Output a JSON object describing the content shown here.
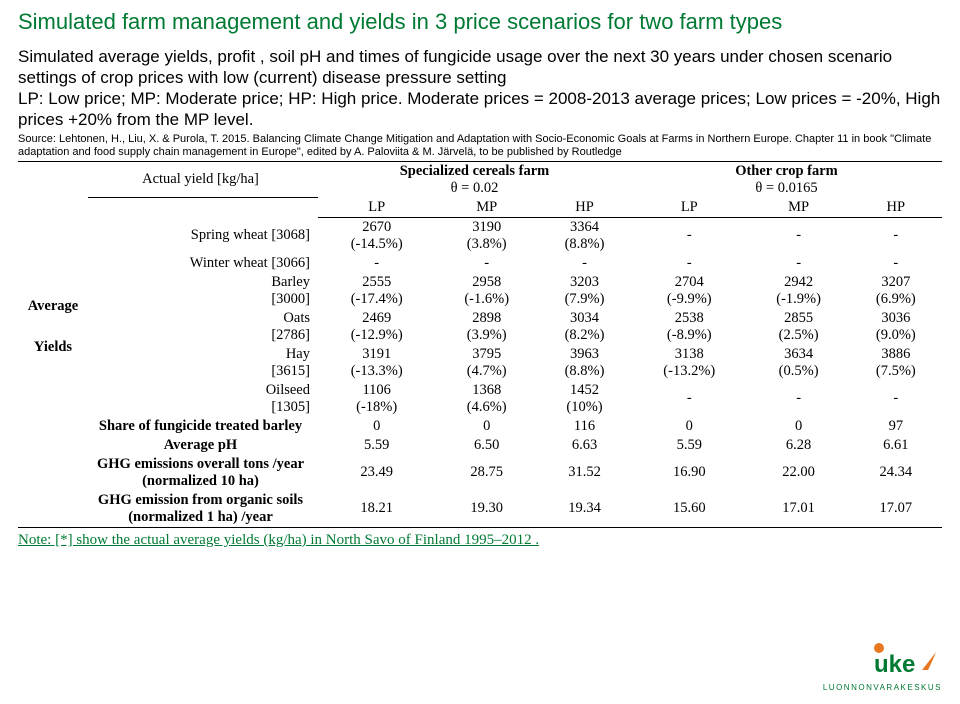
{
  "title": "Simulated farm management and yields in 3 price scenarios for two farm types",
  "intro": "Simulated average yields, profit , soil pH and times of fungicide usage over the next  30 years under chosen scenario settings of crop prices with low (current) disease pressure setting\nLP: Low price; MP: Moderate price; HP: High price. Moderate prices = 2008-2013 average prices; Low prices = -20%, High prices +20% from the MP level.",
  "source": "Source: Lehtonen, H., Liu, X. & Purola, T. 2015. Balancing Climate Change Mitigation and Adaptation with Socio-Economic Goals at Farms in Northern Europe. Chapter 11 in book \"Climate adaptation and food supply chain management in Europe\", edited by A. Paloviita & M. Järvelä, to be published by Routledge",
  "header": {
    "actual": "Actual yield [kg/ha]",
    "farm1": "Specialized cereals farm",
    "farm1_theta": "θ = 0.02",
    "farm2": "Other crop farm",
    "farm2_theta": "θ = 0.0165",
    "lp": "LP",
    "mp": "MP",
    "hp": "HP"
  },
  "side_label": "Average Yields",
  "crops": [
    {
      "label": "Spring wheat [3068]",
      "f1": [
        {
          "m": "2670",
          "p": "(-14.5%)"
        },
        {
          "m": "3190",
          "p": "(3.8%)"
        },
        {
          "m": "3364",
          "p": "(8.8%)"
        }
      ],
      "f2": [
        {
          "m": "-",
          "p": ""
        },
        {
          "m": "-",
          "p": ""
        },
        {
          "m": "-",
          "p": ""
        }
      ]
    },
    {
      "label": "Winter wheat [3066]",
      "f1": [
        {
          "m": "-",
          "p": ""
        },
        {
          "m": "-",
          "p": ""
        },
        {
          "m": "-",
          "p": ""
        }
      ],
      "f2": [
        {
          "m": "-",
          "p": ""
        },
        {
          "m": "-",
          "p": ""
        },
        {
          "m": "-",
          "p": ""
        }
      ]
    },
    {
      "label": "Barley",
      "label2": "[3000]",
      "f1": [
        {
          "m": "2555",
          "p": "(-17.4%)"
        },
        {
          "m": "2958",
          "p": "(-1.6%)"
        },
        {
          "m": "3203",
          "p": "(7.9%)"
        }
      ],
      "f2": [
        {
          "m": "2704",
          "p": "(-9.9%)"
        },
        {
          "m": "2942",
          "p": "(-1.9%)"
        },
        {
          "m": "3207",
          "p": "(6.9%)"
        }
      ]
    },
    {
      "label": "Oats",
      "label2": "[2786]",
      "f1": [
        {
          "m": "2469",
          "p": "(-12.9%)"
        },
        {
          "m": "2898",
          "p": "(3.9%)"
        },
        {
          "m": "3034",
          "p": "(8.2%)"
        }
      ],
      "f2": [
        {
          "m": "2538",
          "p": "(-8.9%)"
        },
        {
          "m": "2855",
          "p": "(2.5%)"
        },
        {
          "m": "3036",
          "p": "(9.0%)"
        }
      ]
    },
    {
      "label": "Hay",
      "label2": "[3615]",
      "f1": [
        {
          "m": "3191",
          "p": "(-13.3%)"
        },
        {
          "m": "3795",
          "p": "(4.7%)"
        },
        {
          "m": "3963",
          "p": "(8.8%)"
        }
      ],
      "f2": [
        {
          "m": "3138",
          "p": "(-13.2%)"
        },
        {
          "m": "3634",
          "p": "(0.5%)"
        },
        {
          "m": "3886",
          "p": "(7.5%)"
        }
      ]
    },
    {
      "label": "Oilseed",
      "label2": "[1305]",
      "f1": [
        {
          "m": "1106",
          "p": "(-18%)"
        },
        {
          "m": "1368",
          "p": "(4.6%)"
        },
        {
          "m": "1452",
          "p": "(10%)"
        }
      ],
      "f2": [
        {
          "m": "-",
          "p": ""
        },
        {
          "m": "-",
          "p": ""
        },
        {
          "m": "-",
          "p": ""
        }
      ]
    }
  ],
  "bottom_rows": [
    {
      "label": "Share of fungicide treated barley",
      "f1": [
        "0",
        "0",
        "116"
      ],
      "f2": [
        "0",
        "0",
        "97"
      ]
    },
    {
      "label": "Average pH",
      "f1": [
        "5.59",
        "6.50",
        "6.63"
      ],
      "f2": [
        "5.59",
        "6.28",
        "6.61"
      ]
    },
    {
      "label": "GHG emissions overall tons /year (normalized 10 ha)",
      "f1": [
        "23.49",
        "28.75",
        "31.52"
      ],
      "f2": [
        "16.90",
        "22.00",
        "24.34"
      ]
    },
    {
      "label": "GHG emission from organic soils (normalized 1 ha) /year",
      "f1": [
        "18.21",
        "19.30",
        "19.34"
      ],
      "f2": [
        "15.60",
        "17.01",
        "17.07"
      ]
    }
  ],
  "note": "Note: [*] show the actual average yields (kg/ha) in North Savo of Finland 1995–2012 .",
  "logo_text": "LUONNONVARAKESKUS",
  "colors": {
    "green": "#007a33",
    "orange": "#e87722"
  }
}
